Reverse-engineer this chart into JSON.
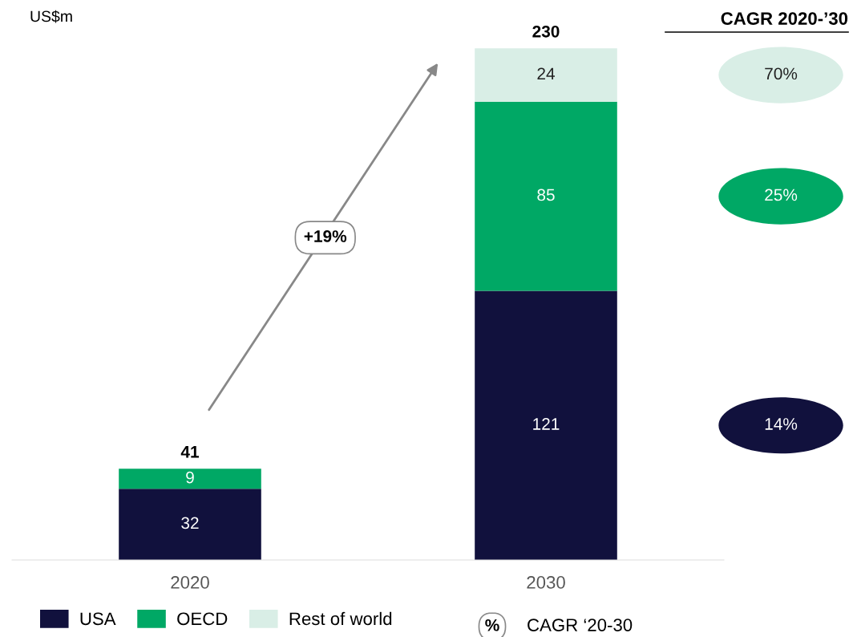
{
  "chart_data": {
    "type": "bar",
    "stacked": true,
    "categories": [
      "2020",
      "2030"
    ],
    "series": [
      {
        "name": "USA",
        "color": "#11113d",
        "values": [
          32,
          121
        ],
        "value_labels": [
          "32",
          "121"
        ]
      },
      {
        "name": "OECD",
        "color": "#00a865",
        "values": [
          9,
          85
        ],
        "value_labels": [
          "9",
          "85"
        ]
      },
      {
        "name": "Rest of world",
        "color": "#d9eee6",
        "values": [
          null,
          24
        ],
        "value_labels": [
          null,
          "24"
        ]
      }
    ],
    "totals": [
      "41",
      "230"
    ],
    "tick_labels": "x",
    "grid": false,
    "legend": "bottom",
    "annotations": [
      "US$m",
      "CAGR 2020-’30",
      "+19%",
      "70%",
      "25%",
      "14%",
      "%",
      "CAGR ‘20-30"
    ]
  }
}
